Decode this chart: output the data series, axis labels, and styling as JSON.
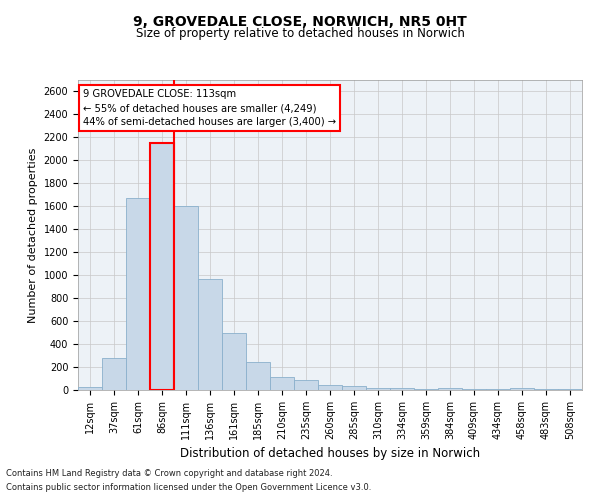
{
  "title1": "9, GROVEDALE CLOSE, NORWICH, NR5 0HT",
  "title2": "Size of property relative to detached houses in Norwich",
  "xlabel": "Distribution of detached houses by size in Norwich",
  "ylabel": "Number of detached properties",
  "footnote1": "Contains HM Land Registry data © Crown copyright and database right 2024.",
  "footnote2": "Contains public sector information licensed under the Open Government Licence v3.0.",
  "annotation_line1": "9 GROVEDALE CLOSE: 113sqm",
  "annotation_line2": "← 55% of detached houses are smaller (4,249)",
  "annotation_line3": "44% of semi-detached houses are larger (3,400) →",
  "bar_labels": [
    "12sqm",
    "37sqm",
    "61sqm",
    "86sqm",
    "111sqm",
    "136sqm",
    "161sqm",
    "185sqm",
    "210sqm",
    "235sqm",
    "260sqm",
    "285sqm",
    "310sqm",
    "334sqm",
    "359sqm",
    "384sqm",
    "409sqm",
    "434sqm",
    "458sqm",
    "483sqm",
    "508sqm"
  ],
  "bar_values": [
    30,
    280,
    1670,
    2150,
    1600,
    970,
    500,
    245,
    115,
    90,
    40,
    35,
    20,
    20,
    10,
    20,
    5,
    5,
    20,
    5,
    5
  ],
  "bar_color": "#c8d8e8",
  "bar_edge_color": "#8ab0cc",
  "highlight_bar_index": 3,
  "vline_color": "red",
  "vline_x": 3.5,
  "ylim": [
    0,
    2700
  ],
  "yticks": [
    0,
    200,
    400,
    600,
    800,
    1000,
    1200,
    1400,
    1600,
    1800,
    2000,
    2200,
    2400,
    2600
  ],
  "grid_color": "#c8c8c8",
  "background_color": "#edf2f7",
  "fig_background": "#ffffff",
  "box_color": "#ffffff",
  "box_edge_color": "red",
  "title1_fontsize": 10,
  "title2_fontsize": 8.5,
  "ylabel_fontsize": 8,
  "xlabel_fontsize": 8.5,
  "tick_fontsize": 7,
  "footnote_fontsize": 6
}
